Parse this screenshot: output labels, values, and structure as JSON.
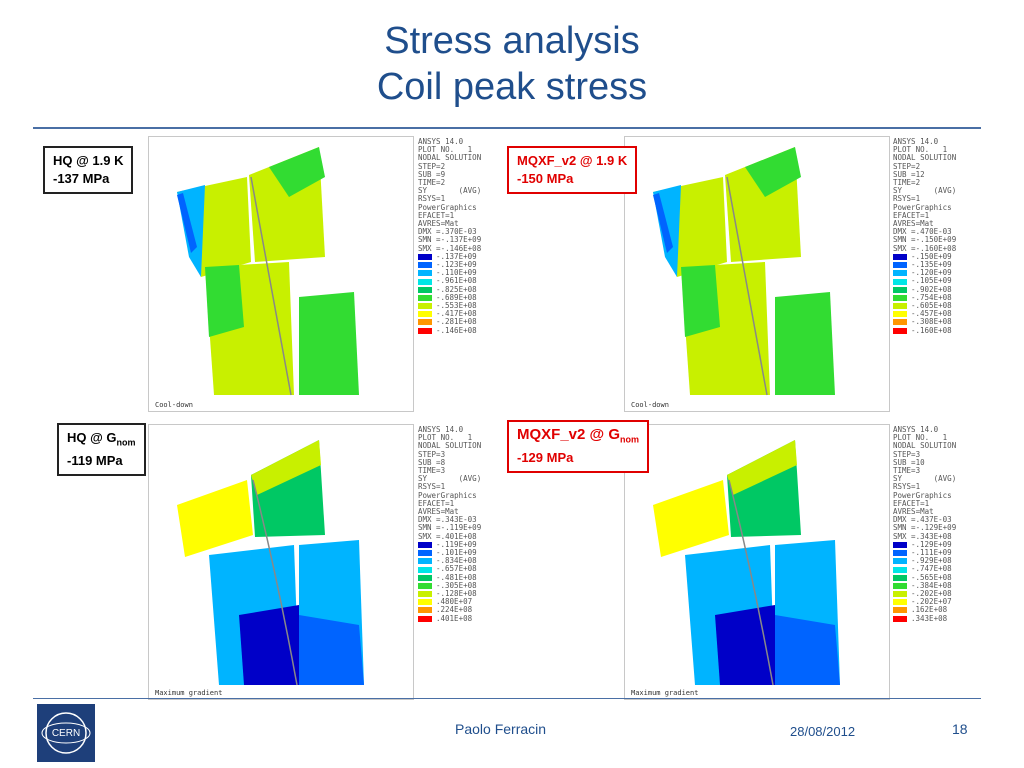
{
  "slide": {
    "title_line1": "Stress analysis",
    "title_line2": "Coil peak stress",
    "footer_name": "Paolo Ferracin",
    "footer_date": "28/08/2012",
    "page_number": "18",
    "logo_text": "CERN"
  },
  "labels": {
    "tl_line1": "HQ @ 1.9 K",
    "tl_line2": "-137 MPa",
    "tr_line1": "MQXF_v2 @ 1.9 K",
    "tr_line2": "-150 MPa",
    "bl_line1_pre": "HQ @ G",
    "bl_line1_sub": "nom",
    "bl_line2": "-119 MPa",
    "br_line1_pre": "MQXF_v2 @ G",
    "br_line1_sub": "nom",
    "br_line2": "-129 MPa"
  },
  "panels": [
    {
      "header": [
        "ANSYS 14.0",
        "PLOT NO.   1",
        "NODAL SOLUTION",
        "STEP=2",
        "SUB =9",
        "TIME=2",
        "SY       (AVG)",
        "RSYS=1",
        "PowerGraphics",
        "EFACET=1",
        "AVRES=Mat",
        "DMX =.370E-03",
        "SMN =-.137E+09",
        "SMX =-.146E+08"
      ],
      "legend": [
        "-.137E+09",
        "-.123E+09",
        "-.110E+09",
        "-.961E+08",
        "-.825E+08",
        "-.689E+08",
        "-.553E+08",
        "-.417E+08",
        "-.281E+08",
        "-.146E+08"
      ],
      "caption": "Cool-down"
    },
    {
      "header": [
        "ANSYS 14.0",
        "PLOT NO.   1",
        "NODAL SOLUTION",
        "STEP=2",
        "SUB =12",
        "TIME=2",
        "SY       (AVG)",
        "RSYS=1",
        "PowerGraphics",
        "EFACET=1",
        "AVRES=Mat",
        "DMX =.470E-03",
        "SMN =-.150E+09",
        "SMX =-.160E+08"
      ],
      "legend": [
        "-.150E+09",
        "-.135E+09",
        "-.120E+09",
        "-.105E+09",
        "-.902E+08",
        "-.754E+08",
        "-.605E+08",
        "-.457E+08",
        "-.308E+08",
        "-.160E+08"
      ],
      "caption": "Cool-down"
    },
    {
      "header": [
        "ANSYS 14.0",
        "PLOT NO.   1",
        "NODAL SOLUTION",
        "STEP=3",
        "SUB =8",
        "TIME=3",
        "SY       (AVG)",
        "RSYS=1",
        "PowerGraphics",
        "EFACET=1",
        "AVRES=Mat",
        "DMX =.343E-03",
        "SMN =-.119E+09",
        "SMX =.401E+08"
      ],
      "legend": [
        "-.119E+09",
        "-.101E+09",
        "-.834E+08",
        "-.657E+08",
        "-.481E+08",
        "-.305E+08",
        "-.128E+08",
        ".480E+07",
        ".224E+08",
        ".401E+08"
      ],
      "caption": "Maximum gradient"
    },
    {
      "header": [
        "ANSYS 14.0",
        "PLOT NO.   1",
        "NODAL SOLUTION",
        "STEP=3",
        "SUB =10",
        "TIME=3",
        "SY       (AVG)",
        "RSYS=1",
        "PowerGraphics",
        "EFACET=1",
        "AVRES=Mat",
        "DMX =.437E-03",
        "SMN =-.129E+09",
        "SMX =.343E+08"
      ],
      "legend": [
        "-.129E+09",
        "-.111E+09",
        "-.929E+08",
        "-.747E+08",
        "-.565E+08",
        "-.384E+08",
        "-.202E+08",
        "-.202E+07",
        ".162E+08",
        ".343E+08"
      ],
      "caption": "Maximum gradient"
    }
  ],
  "legend_colors": [
    "#0000c8",
    "#0064ff",
    "#00b4ff",
    "#00e6e6",
    "#00c864",
    "#32dc32",
    "#c8f000",
    "#ffff00",
    "#ff9600",
    "#ff0000"
  ]
}
